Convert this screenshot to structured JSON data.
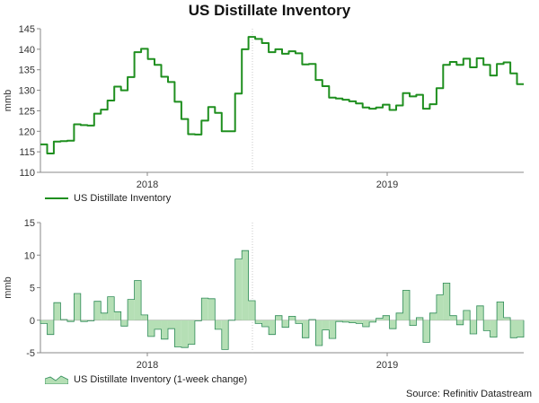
{
  "title": "US Distillate Inventory",
  "source": "Source: Refinitiv Datastream",
  "colors": {
    "line": "#1f8f1f",
    "area_fill": "#b5dfb5",
    "area_stroke": "#2e8b57",
    "axis": "#888888",
    "divider": "#c8c8c8"
  },
  "chart_data": [
    {
      "type": "line",
      "title": "US Distillate Inventory",
      "ylabel": "mmb",
      "ylim": [
        110,
        145
      ],
      "yticks": [
        110,
        115,
        120,
        125,
        130,
        135,
        140,
        145
      ],
      "xtick_labels": [
        "2018",
        "2019"
      ],
      "grid": false,
      "legend": "bottom-left",
      "series": [
        {
          "name": "US Distillate Inventory",
          "values": [
            116.8,
            114.6,
            117.5,
            117.6,
            117.7,
            121.7,
            121.5,
            121.4,
            124.3,
            125.3,
            127.5,
            130.9,
            130.0,
            133.2,
            139.3,
            140.1,
            137.6,
            136.2,
            133.3,
            132.0,
            127.2,
            123.0,
            119.3,
            119.2,
            122.6,
            125.9,
            124.5,
            120.0,
            120.0,
            129.2,
            140.0,
            143.0,
            142.5,
            141.5,
            139.3,
            140.0,
            138.9,
            139.5,
            139.0,
            136.3,
            136.4,
            132.5,
            131.0,
            128.2,
            128.0,
            127.7,
            127.3,
            126.8,
            125.8,
            125.5,
            125.8,
            126.5,
            125.2,
            126.3,
            129.3,
            128.5,
            128.9,
            125.5,
            126.6,
            130.5,
            136.2,
            136.9,
            136.2,
            137.7,
            135.6,
            137.8,
            136.2,
            133.6,
            136.4,
            136.8,
            134.1,
            131.5
          ]
        }
      ]
    },
    {
      "type": "area",
      "title": "",
      "ylabel": "mmb",
      "ylim": [
        -5,
        15
      ],
      "yticks": [
        -5,
        0,
        5,
        10,
        15
      ],
      "xtick_labels": [
        "2018",
        "2019"
      ],
      "grid": false,
      "legend": "bottom-left",
      "series": [
        {
          "name": "US Distillate Inventory (1-week change)",
          "values": [
            -0.5,
            -2.2,
            2.7,
            0.1,
            -0.2,
            4.1,
            -0.2,
            -0.1,
            2.9,
            1.1,
            3.6,
            1.3,
            -0.9,
            3.2,
            6.1,
            0.8,
            -2.5,
            -1.4,
            -2.9,
            -1.3,
            -4.1,
            -4.2,
            -3.7,
            -0.1,
            3.4,
            3.3,
            -1.4,
            -4.5,
            0.0,
            9.4,
            10.7,
            3.0,
            -0.5,
            -1.0,
            -2.2,
            0.7,
            -1.1,
            0.6,
            -0.5,
            -2.7,
            0.1,
            -3.9,
            -1.5,
            -2.8,
            -0.2,
            -0.3,
            -0.4,
            -0.5,
            -1.0,
            -0.3,
            0.3,
            0.7,
            -1.3,
            1.1,
            4.6,
            -0.8,
            0.4,
            -3.4,
            1.1,
            3.9,
            5.7,
            0.7,
            -0.7,
            1.5,
            -2.1,
            2.2,
            -1.6,
            -2.6,
            2.8,
            0.4,
            -2.7,
            -2.6
          ]
        }
      ]
    }
  ]
}
